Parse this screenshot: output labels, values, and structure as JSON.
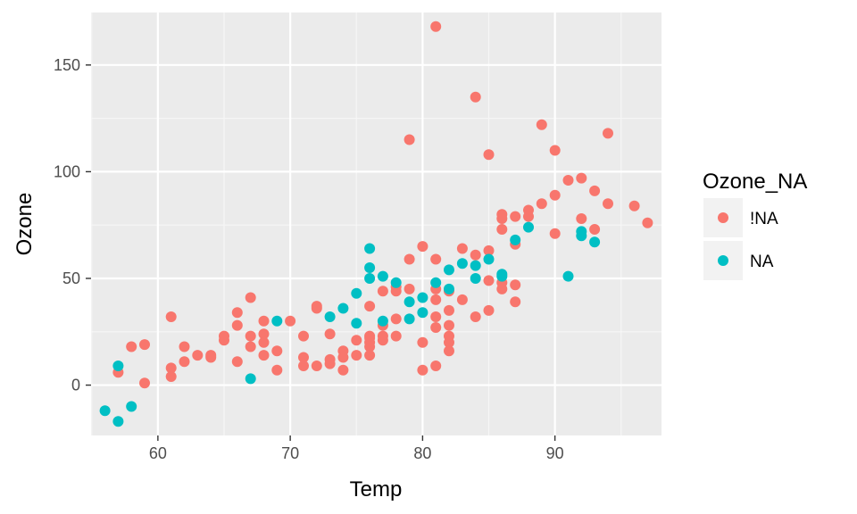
{
  "chart_data": {
    "type": "scatter",
    "title": "",
    "xlabel": "Temp",
    "ylabel": "Ozone",
    "xlim": [
      54.95,
      98.05
    ],
    "ylim": [
      -23.6,
      174.6
    ],
    "x_ticks": [
      60,
      70,
      80,
      90
    ],
    "y_ticks": [
      0,
      50,
      100,
      150
    ],
    "grid": true,
    "legend": {
      "title": "Ozone_NA",
      "placement": "right"
    },
    "series": [
      {
        "name": "!NA",
        "color": "#F8766D",
        "points": [
          [
            57,
            6
          ],
          [
            58,
            18
          ],
          [
            59,
            1
          ],
          [
            59,
            19
          ],
          [
            61,
            32
          ],
          [
            61,
            8
          ],
          [
            61,
            4
          ],
          [
            62,
            18
          ],
          [
            62,
            11
          ],
          [
            63,
            14
          ],
          [
            64,
            13
          ],
          [
            64,
            14
          ],
          [
            65,
            21
          ],
          [
            65,
            23
          ],
          [
            66,
            34
          ],
          [
            66,
            28
          ],
          [
            66,
            11
          ],
          [
            67,
            41
          ],
          [
            67,
            23
          ],
          [
            67,
            18
          ],
          [
            68,
            30
          ],
          [
            68,
            24
          ],
          [
            68,
            14
          ],
          [
            68,
            20
          ],
          [
            69,
            16
          ],
          [
            69,
            7
          ],
          [
            70,
            30
          ],
          [
            71,
            23
          ],
          [
            71,
            13
          ],
          [
            71,
            9
          ],
          [
            72,
            37
          ],
          [
            72,
            36
          ],
          [
            72,
            9
          ],
          [
            73,
            24
          ],
          [
            73,
            12
          ],
          [
            73,
            10
          ],
          [
            74,
            16
          ],
          [
            74,
            7
          ],
          [
            74,
            13
          ],
          [
            75,
            21
          ],
          [
            75,
            14
          ],
          [
            76,
            37
          ],
          [
            76,
            23
          ],
          [
            76,
            22
          ],
          [
            76,
            20
          ],
          [
            76,
            18
          ],
          [
            76,
            14
          ],
          [
            77,
            44
          ],
          [
            77,
            28
          ],
          [
            77,
            23
          ],
          [
            77,
            21
          ],
          [
            78,
            46
          ],
          [
            78,
            44
          ],
          [
            78,
            31
          ],
          [
            78,
            23
          ],
          [
            79,
            59
          ],
          [
            79,
            45
          ],
          [
            79,
            115
          ],
          [
            80,
            65
          ],
          [
            80,
            20
          ],
          [
            80,
            7
          ],
          [
            81,
            168
          ],
          [
            81,
            59
          ],
          [
            81,
            45
          ],
          [
            81,
            40
          ],
          [
            81,
            32
          ],
          [
            81,
            27
          ],
          [
            81,
            9
          ],
          [
            82,
            44
          ],
          [
            82,
            35
          ],
          [
            82,
            28
          ],
          [
            82,
            23
          ],
          [
            82,
            20
          ],
          [
            82,
            16
          ],
          [
            83,
            64
          ],
          [
            83,
            40
          ],
          [
            84,
            61
          ],
          [
            84,
            135
          ],
          [
            84,
            32
          ],
          [
            85,
            108
          ],
          [
            85,
            63
          ],
          [
            85,
            49
          ],
          [
            85,
            35
          ],
          [
            86,
            80
          ],
          [
            86,
            78
          ],
          [
            86,
            73
          ],
          [
            86,
            48
          ],
          [
            86,
            45
          ],
          [
            87,
            79
          ],
          [
            87,
            66
          ],
          [
            87,
            47
          ],
          [
            87,
            39
          ],
          [
            88,
            82
          ],
          [
            88,
            79
          ],
          [
            89,
            122
          ],
          [
            89,
            85
          ],
          [
            90,
            110
          ],
          [
            90,
            89
          ],
          [
            90,
            71
          ],
          [
            91,
            96
          ],
          [
            92,
            97
          ],
          [
            92,
            78
          ],
          [
            93,
            91
          ],
          [
            93,
            73
          ],
          [
            94,
            118
          ],
          [
            94,
            85
          ],
          [
            96,
            84
          ],
          [
            97,
            76
          ]
        ]
      },
      {
        "name": "NA",
        "color": "#00BFC4",
        "points": [
          [
            56,
            -12
          ],
          [
            57,
            9
          ],
          [
            57,
            -17
          ],
          [
            58,
            -10
          ],
          [
            67,
            3
          ],
          [
            69,
            30
          ],
          [
            73,
            32
          ],
          [
            74,
            36
          ],
          [
            75,
            29
          ],
          [
            75,
            43
          ],
          [
            76,
            64
          ],
          [
            76,
            55
          ],
          [
            76,
            50
          ],
          [
            77,
            51
          ],
          [
            77,
            30
          ],
          [
            78,
            48
          ],
          [
            79,
            39
          ],
          [
            79,
            31
          ],
          [
            80,
            41
          ],
          [
            80,
            34
          ],
          [
            81,
            48
          ],
          [
            82,
            54
          ],
          [
            82,
            45
          ],
          [
            83,
            57
          ],
          [
            84,
            56
          ],
          [
            84,
            50
          ],
          [
            85,
            59
          ],
          [
            86,
            52
          ],
          [
            86,
            51
          ],
          [
            87,
            68
          ],
          [
            88,
            74
          ],
          [
            91,
            51
          ],
          [
            92,
            72
          ],
          [
            92,
            70
          ],
          [
            93,
            67
          ]
        ]
      }
    ]
  }
}
